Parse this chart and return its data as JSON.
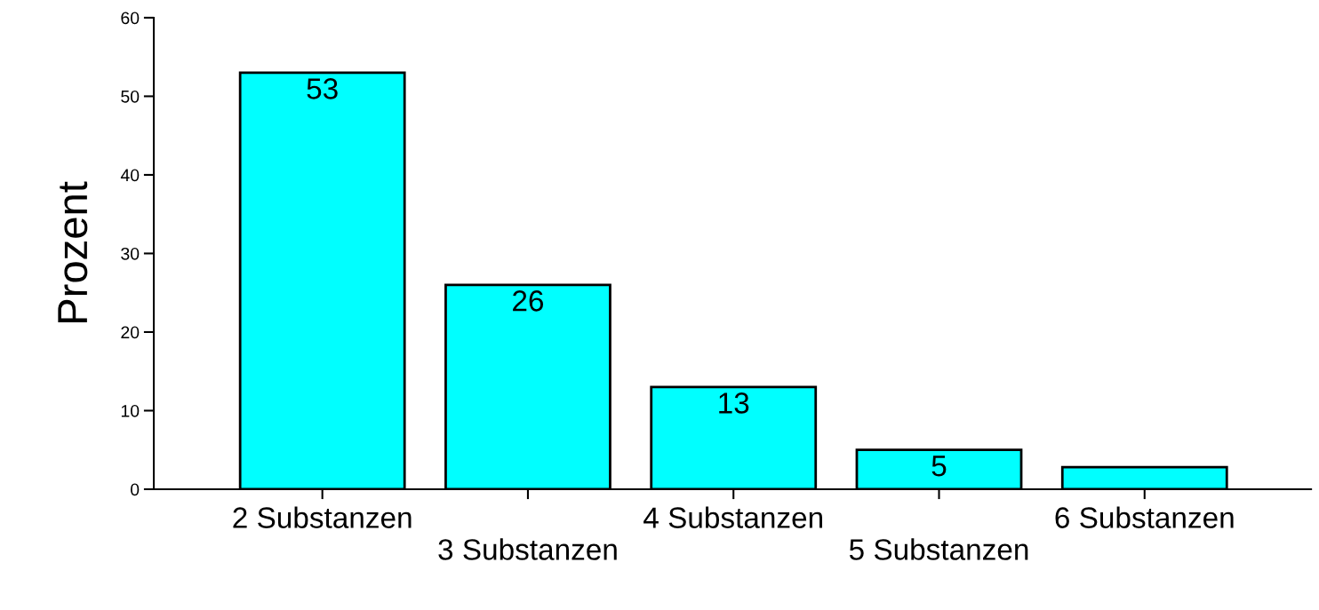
{
  "chart_data": {
    "type": "bar",
    "ylabel": "Prozent",
    "categories": [
      "2 Substanzen",
      "3 Substanzen",
      "4 Substanzen",
      "5 Substanzen",
      "6 Substanzen"
    ],
    "values": [
      53,
      26,
      13,
      5,
      2.8
    ],
    "value_labels": [
      "53",
      "26",
      "13",
      "5",
      null
    ],
    "color": "#00ffff",
    "ylim": [
      0,
      60
    ],
    "yticks": [
      0,
      10,
      20,
      30,
      40,
      50,
      60
    ],
    "grid": false,
    "legend": false
  }
}
